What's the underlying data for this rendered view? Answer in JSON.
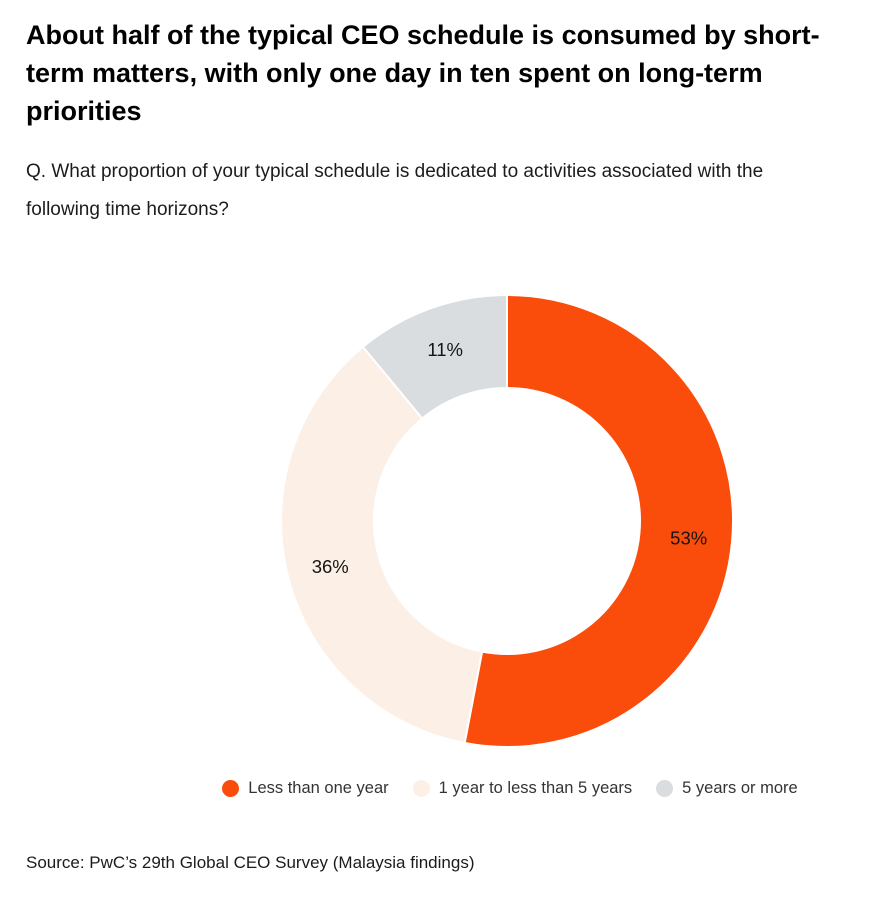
{
  "header": {
    "title": "About half of the typical CEO schedule is consumed by short-term matters, with only one day in ten spent on long-term priorities",
    "question": "Q. What proportion of your typical schedule is dedicated to activities associated with the following time horizons?"
  },
  "chart_data": {
    "type": "pie",
    "subtype": "donut",
    "title": "About half of the typical CEO schedule is consumed by short-term matters, with only one day in ten spent on long-term priorities",
    "categories": [
      "Less than one year",
      "1 year to less than 5 years",
      "5 years or more"
    ],
    "values": [
      53,
      36,
      11
    ],
    "unit": "%",
    "data_labels": [
      "53%",
      "36%",
      "11%"
    ],
    "colors": [
      "#FA4D0C",
      "#FCEFE6",
      "#DADDE0"
    ],
    "segment_border_color": "#FFFFFF",
    "start_angle_deg_clockwise_from_top": 0,
    "legend_position": "bottom",
    "grid": false
  },
  "source": {
    "text": "Source: PwC’s 29th Global CEO Survey (Malaysia findings)"
  }
}
